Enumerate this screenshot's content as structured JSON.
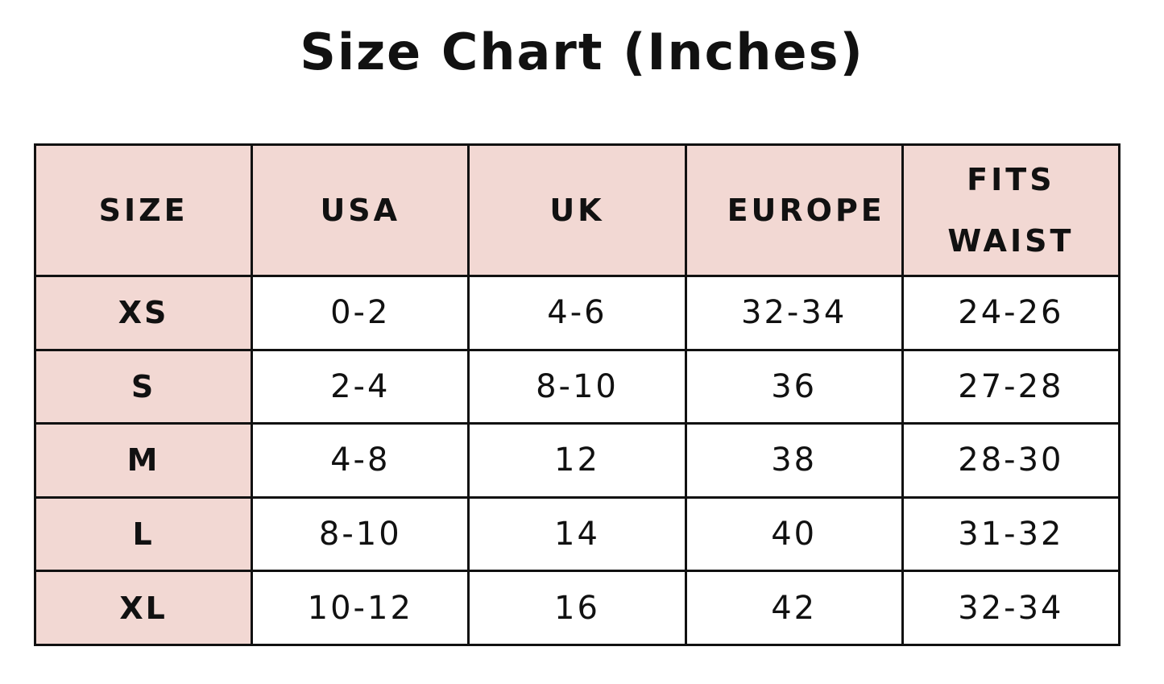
{
  "title": "Size Chart (Inches)",
  "table": {
    "header": [
      "SIZE",
      "USA",
      "UK",
      "EUROPE",
      "FITS WAIST"
    ],
    "rows": [
      [
        "XS",
        "0-2",
        "4-6",
        "32-34",
        "24-26"
      ],
      [
        "S",
        "2-4",
        "8-10",
        "36",
        "27-28"
      ],
      [
        "M",
        "4-8",
        "12",
        "38",
        "28-30"
      ],
      [
        "L",
        "8-10",
        "14",
        "40",
        "31-32"
      ],
      [
        "XL",
        "10-12",
        "16",
        "42",
        "32-34"
      ]
    ]
  }
}
